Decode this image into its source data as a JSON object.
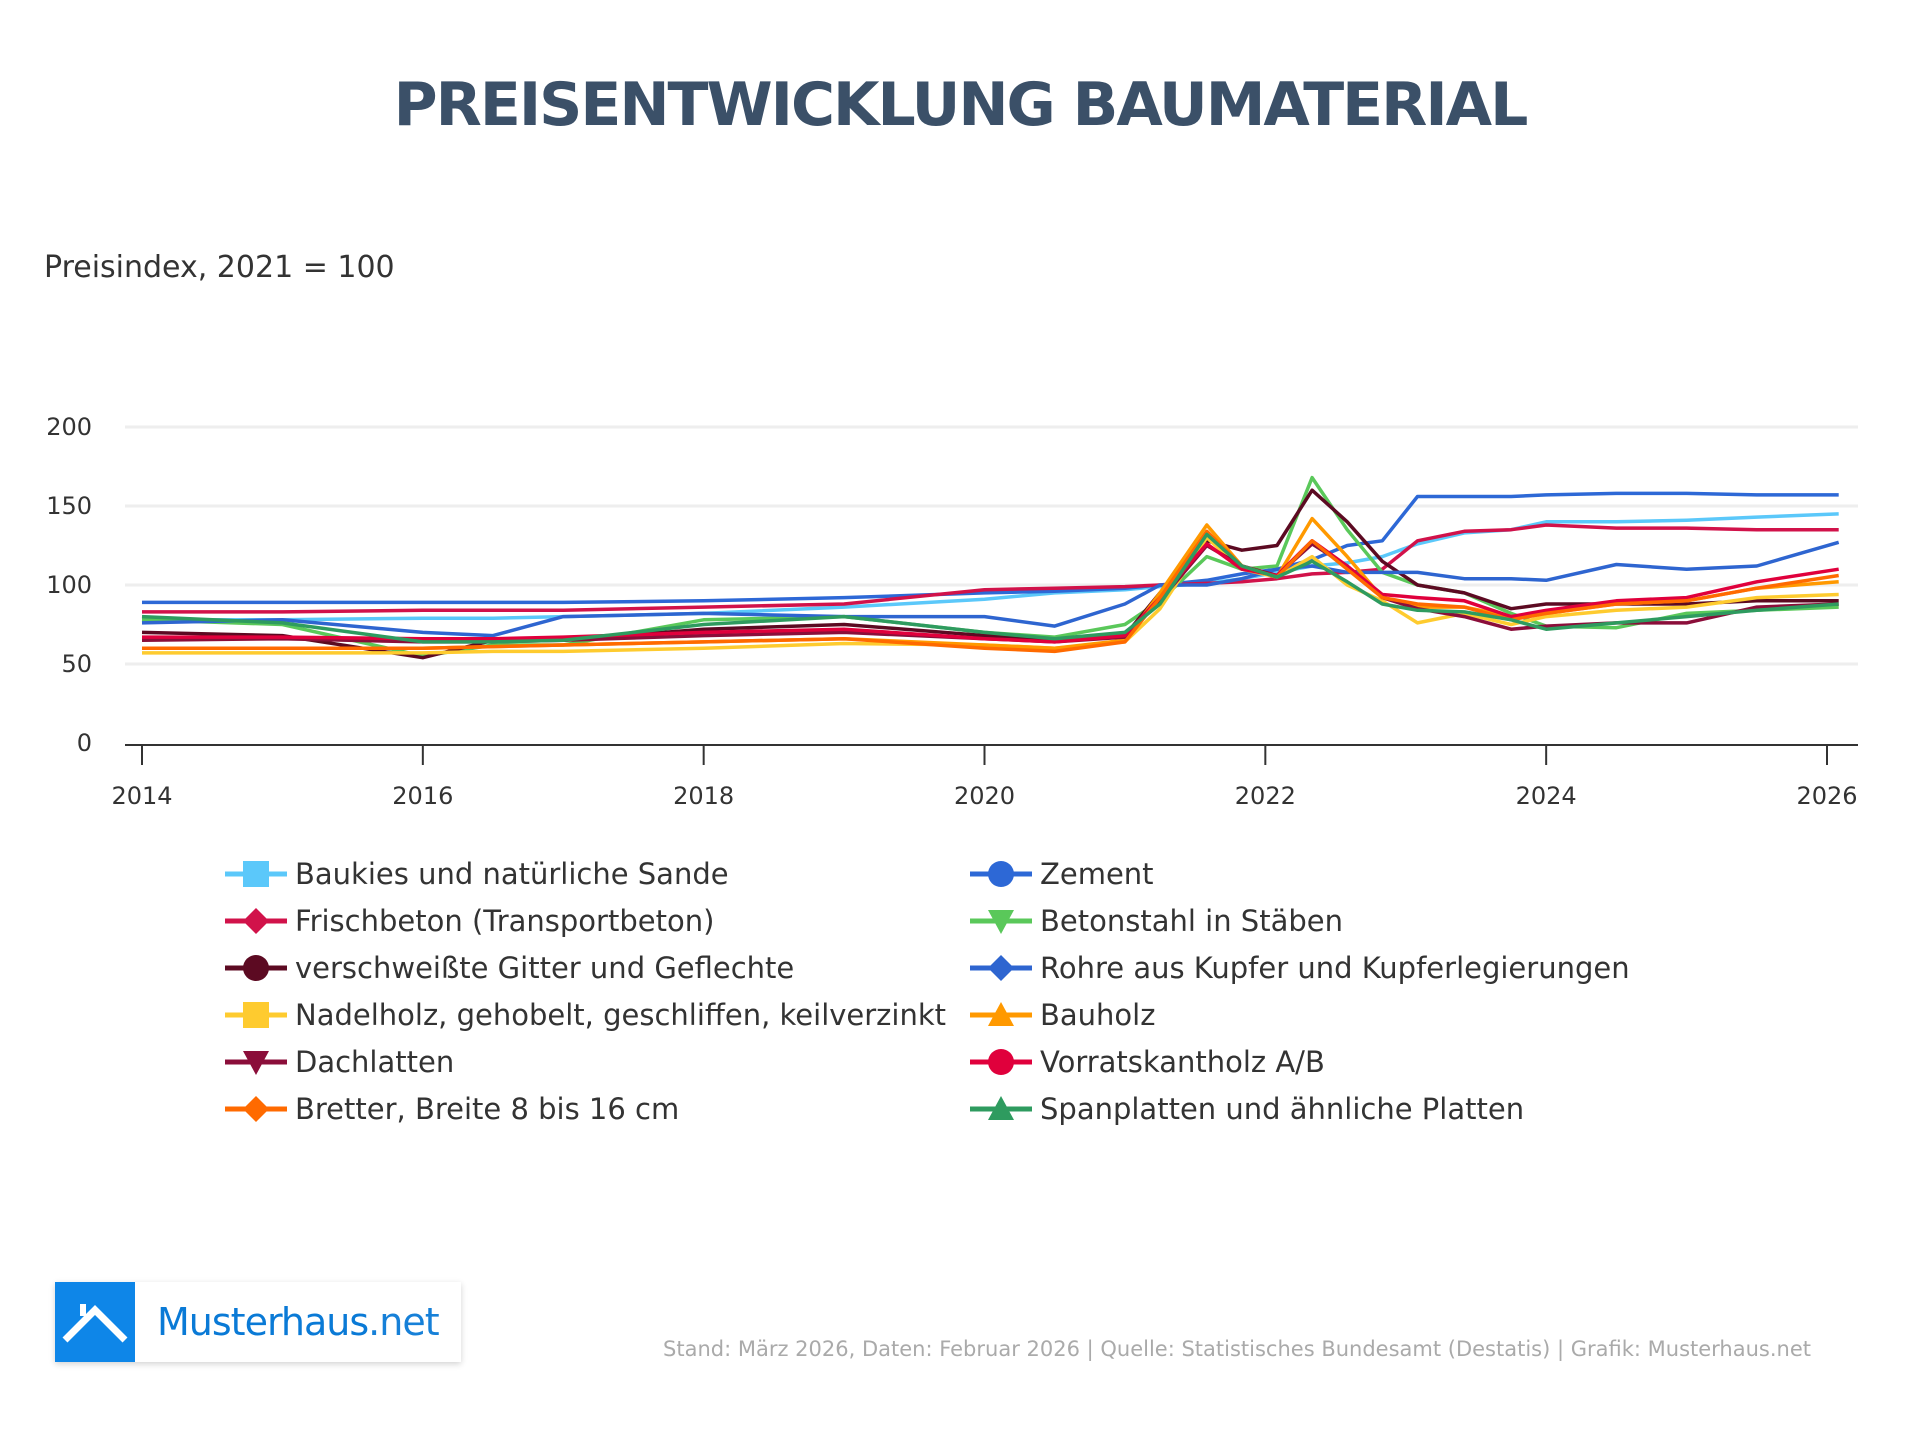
{
  "header": {
    "title": "PREISENTWICKLUNG BAUMATERIAL",
    "subtitle": "Preisindex, 2021 = 100"
  },
  "chart_data": {
    "type": "line",
    "title": "PREISENTWICKLUNG BAUMATERIAL",
    "ylabel": "Preisindex, 2021 = 100",
    "ylim": [
      0,
      200
    ],
    "xlim": [
      "2014-01",
      "2026-02"
    ],
    "y_ticks": [
      0,
      50,
      100,
      150,
      200
    ],
    "x_ticks": [
      "2014",
      "2016",
      "2018",
      "2020",
      "2022",
      "2024",
      "2026"
    ],
    "grid": "horizontal",
    "legend_placement": "bottom",
    "x": [
      "2014-01",
      "2015-01",
      "2016-01",
      "2016-07",
      "2017-01",
      "2018-01",
      "2019-01",
      "2020-01",
      "2020-07",
      "2021-01",
      "2021-04",
      "2021-08",
      "2021-11",
      "2022-02",
      "2022-05",
      "2022-08",
      "2022-11",
      "2023-02",
      "2023-06",
      "2023-10",
      "2024-01",
      "2024-07",
      "2025-01",
      "2025-07",
      "2026-02"
    ],
    "series": [
      {
        "name": "Baukies und natürliche Sande",
        "color": "#5bc8fa",
        "marker": "square",
        "values": [
          78,
          78,
          79,
          79,
          80,
          82,
          86,
          91,
          95,
          97,
          99,
          101,
          104,
          108,
          112,
          114,
          118,
          126,
          133,
          135,
          140,
          140,
          141,
          143,
          145
        ]
      },
      {
        "name": "Zement",
        "color": "#2d68d6",
        "marker": "circle",
        "values": [
          89,
          89,
          89,
          89,
          89,
          90,
          92,
          95,
          96,
          98,
          100,
          103,
          107,
          110,
          116,
          125,
          128,
          156,
          156,
          156,
          157,
          158,
          158,
          157,
          157
        ]
      },
      {
        "name": "Frischbeton (Transportbeton)",
        "color": "#d1124a",
        "marker": "diamond",
        "values": [
          83,
          83,
          84,
          84,
          84,
          86,
          88,
          97,
          98,
          99,
          100,
          101,
          102,
          104,
          107,
          108,
          110,
          128,
          134,
          135,
          138,
          136,
          136,
          135,
          135
        ]
      },
      {
        "name": "Betonstahl in Stäben",
        "color": "#5ac85a",
        "marker": "triangle-down",
        "values": [
          78,
          75,
          55,
          62,
          62,
          78,
          80,
          70,
          67,
          75,
          90,
          118,
          110,
          112,
          168,
          135,
          108,
          100,
          95,
          82,
          74,
          73,
          82,
          84,
          86
        ]
      },
      {
        "name": "verschweißte Gitter und Geflechte",
        "color": "#5c0a22",
        "marker": "circle",
        "values": [
          70,
          68,
          54,
          65,
          65,
          72,
          75,
          68,
          65,
          68,
          95,
          128,
          122,
          125,
          160,
          140,
          115,
          100,
          95,
          85,
          88,
          88,
          88,
          90,
          90
        ]
      },
      {
        "name": "Rohre aus Kupfer und Kupferlegierungen",
        "color": "#2e65d0",
        "marker": "diamond",
        "values": [
          76,
          78,
          70,
          68,
          80,
          82,
          80,
          80,
          74,
          88,
          100,
          100,
          104,
          110,
          112,
          108,
          108,
          108,
          104,
          104,
          103,
          113,
          110,
          112,
          127
        ]
      },
      {
        "name": "Nadelholz, gehobelt, geschliffen, keilverzinkt",
        "color": "#fecb2f",
        "marker": "square",
        "values": [
          57,
          57,
          57,
          58,
          58,
          60,
          63,
          62,
          60,
          64,
          85,
          130,
          110,
          105,
          118,
          100,
          90,
          76,
          82,
          75,
          80,
          84,
          86,
          92,
          94
        ]
      },
      {
        "name": "Bauholz",
        "color": "#ff9900",
        "marker": "triangle",
        "values": [
          60,
          60,
          60,
          61,
          62,
          64,
          66,
          62,
          60,
          65,
          95,
          138,
          112,
          105,
          142,
          118,
          92,
          86,
          86,
          80,
          82,
          88,
          90,
          98,
          102
        ]
      },
      {
        "name": "Dachlatten",
        "color": "#8b0e3a",
        "marker": "triangle-down",
        "values": [
          65,
          66,
          64,
          64,
          65,
          68,
          70,
          66,
          64,
          67,
          90,
          125,
          112,
          106,
          126,
          112,
          92,
          85,
          80,
          72,
          74,
          76,
          76,
          86,
          88
        ]
      },
      {
        "name": "Vorratskantholz A/B",
        "color": "#e0003c",
        "marker": "circle",
        "values": [
          67,
          67,
          66,
          66,
          67,
          70,
          72,
          66,
          64,
          68,
          92,
          126,
          110,
          106,
          128,
          112,
          94,
          92,
          90,
          80,
          84,
          90,
          92,
          102,
          110
        ]
      },
      {
        "name": "Bretter, Breite 8 bis 16 cm",
        "color": "#ff6a00",
        "marker": "diamond",
        "values": [
          60,
          60,
          60,
          61,
          62,
          64,
          66,
          60,
          58,
          64,
          92,
          134,
          112,
          105,
          128,
          110,
          92,
          88,
          86,
          78,
          82,
          88,
          90,
          98,
          106
        ]
      },
      {
        "name": "Spanplatten und ähnliche Platten",
        "color": "#2e9b5f",
        "marker": "triangle",
        "values": [
          80,
          76,
          64,
          64,
          65,
          75,
          80,
          70,
          66,
          70,
          88,
          132,
          112,
          105,
          115,
          102,
          88,
          84,
          83,
          78,
          72,
          76,
          80,
          84,
          88
        ]
      }
    ]
  },
  "logo": {
    "brand": "Musterhaus",
    "tld": ".net",
    "color": "#0e86e8"
  },
  "footer": {
    "text": "Stand: März 2026, Daten: Februar 2026 | Quelle: Statistisches Bundesamt (Destatis) | Grafik: Musterhaus.net"
  }
}
